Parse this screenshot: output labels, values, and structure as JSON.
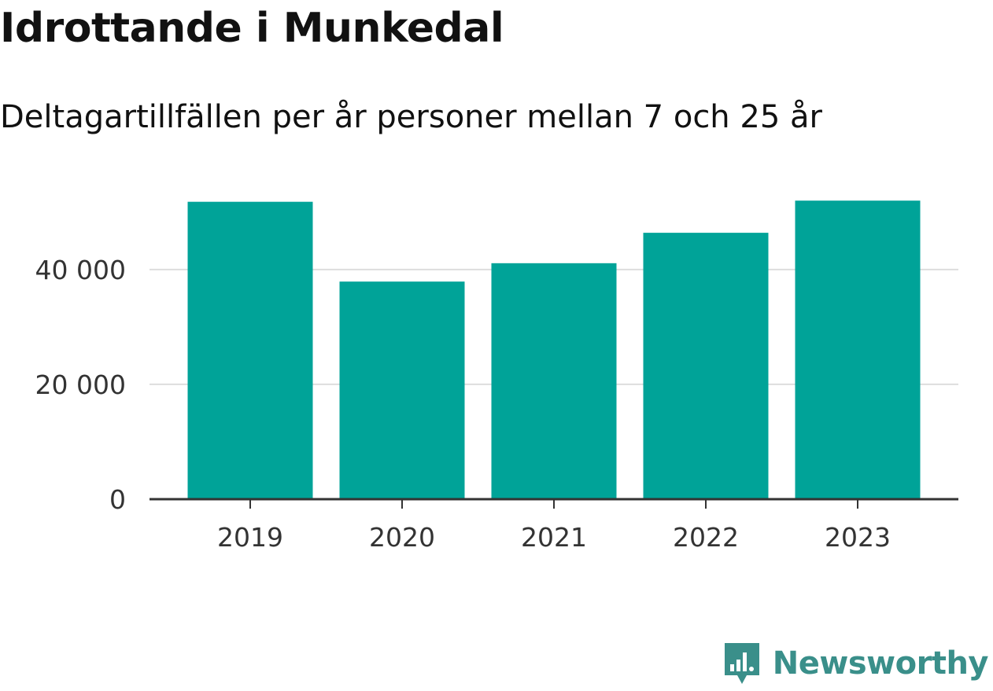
{
  "header": {
    "title": "Idrottande i Munkedal",
    "subtitle": "Deltagartillfällen per år personer mellan 7 och 25 år"
  },
  "brand": {
    "name": "Newsworthy",
    "icon": "newsworthy-logo-icon",
    "color": "#3a8f8a"
  },
  "colors": {
    "bar": "#00a398",
    "axis": "#333333",
    "grid": "#dddddd",
    "tick_text": "#333333"
  },
  "chart_data": {
    "type": "bar",
    "title": "Idrottande i Munkedal",
    "subtitle": "Deltagartillfällen per år personer mellan 7 och 25 år",
    "categories": [
      "2019",
      "2020",
      "2021",
      "2022",
      "2023"
    ],
    "values": [
      51800,
      37900,
      41100,
      46400,
      52000
    ],
    "ylim": [
      0,
      56000
    ],
    "yticks": [
      0,
      20000,
      40000
    ],
    "ytick_labels": [
      "0",
      "20 000",
      "40 000"
    ],
    "grid": true,
    "legend": "none"
  }
}
